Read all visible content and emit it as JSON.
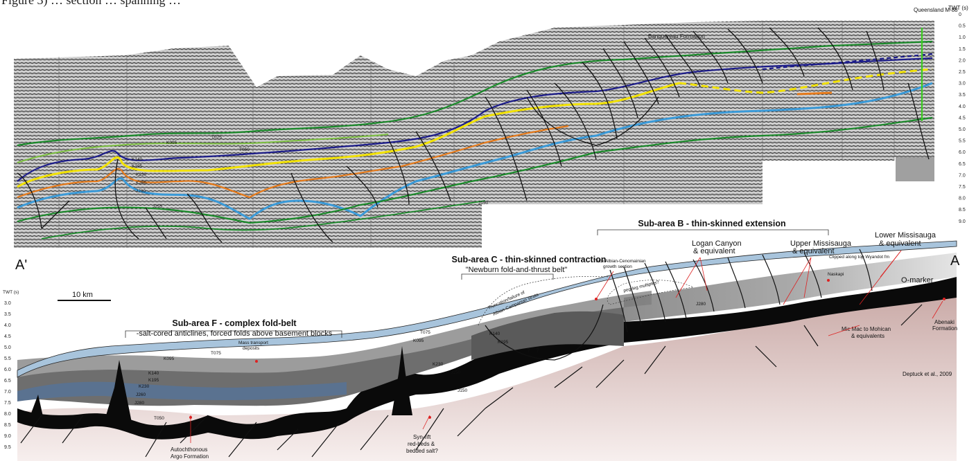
{
  "caption": "Figure 3) … section … spanning …",
  "seismic_section": {
    "well_label": "Queensland M-88",
    "axis_title": "TWT (s)",
    "twt_ticks": [
      "0",
      "0.5",
      "1.0",
      "1.5",
      "2.0",
      "2.5",
      "3.0",
      "3.5",
      "4.0",
      "4.5",
      "5.0",
      "5.5",
      "6.0",
      "6.5",
      "7.0",
      "7.5",
      "8.0",
      "8.5",
      "9.0"
    ],
    "formation_label": "Banquereau Formation",
    "horizon_labels": [
      "K095",
      "T075",
      "K140",
      "K195",
      "K230",
      "K260",
      "J280",
      "J255",
      "J150",
      "T050",
      "J280"
    ]
  },
  "interpretation": {
    "end_left": "A'",
    "end_right": "A",
    "axis_title": "TWT (s)",
    "twt_ticks": [
      "3.0",
      "3.5",
      "4.0",
      "4.5",
      "5.0",
      "5.5",
      "6.0",
      "6.5",
      "7.0",
      "7.5",
      "8.0",
      "8.5",
      "9.0",
      "9.5"
    ],
    "scale_bar": "10 km",
    "subarea_f": {
      "title": "Sub-area F - complex fold-belt",
      "subtitle": "-salt-cored anticlines, forced folds above basement blocks"
    },
    "subarea_c": {
      "title": "Sub-area C - thin-skinned contraction",
      "subtitle": "\"Newburn fold-and-thrust belt\""
    },
    "subarea_b": {
      "title": "Sub-area B - thin-skinned extension"
    },
    "annotations": {
      "truncation": "Truncation/failure of",
      "truncation2": "Albian-Campanian strata",
      "thick_growth": "Thick Albian-Cenomainian",
      "thick_growth2": "growth section",
      "logan": "Logan Canyon",
      "logan2": "& equivalent",
      "upper_miss": "Upper Missisauga",
      "upper_miss2": "& equivalent",
      "lower_miss": "Lower Missisauga",
      "lower_miss2": "& equivalent",
      "clipped": "Clipped along top Wyandot fm",
      "naskapi": "Naskapi",
      "o_marker": "O-marker",
      "abenaki": "Abenaki",
      "abenaki2": "Formation",
      "micmac": "Mic Mac to Mohican",
      "micmac2": "& equivalents",
      "pegleg": "peg-leg multiples?",
      "mass_transport": "Mass transport",
      "mass_transport2": "deposits",
      "synrift": "Syn-rift",
      "synrift2": "red-beds &",
      "synrift3": "bedded salt?",
      "autochthonous": "Autochthonous",
      "autochthonous2": "Argo Formation",
      "citation": "Deptuck et al., 2009",
      "q1": "?",
      "q2": "?"
    },
    "horizon_labels": [
      "K095",
      "T075",
      "K140",
      "K195",
      "K230",
      "J260",
      "J280",
      "T050",
      "J150",
      "K095",
      "T075",
      "K140",
      "K195",
      "K230",
      "J150",
      "J280"
    ]
  },
  "colors": {
    "seismic_bg": "#9a9a9a",
    "green": "#1a8a2a",
    "lime": "#7cc040",
    "navy": "#1c1c8a",
    "yellow": "#f2e200",
    "orange": "#e67a1a",
    "blue": "#3a9ad8",
    "salt": "#0a0a0a",
    "redbeds": "#c9a9a6",
    "sea": "#a8c4dc"
  }
}
